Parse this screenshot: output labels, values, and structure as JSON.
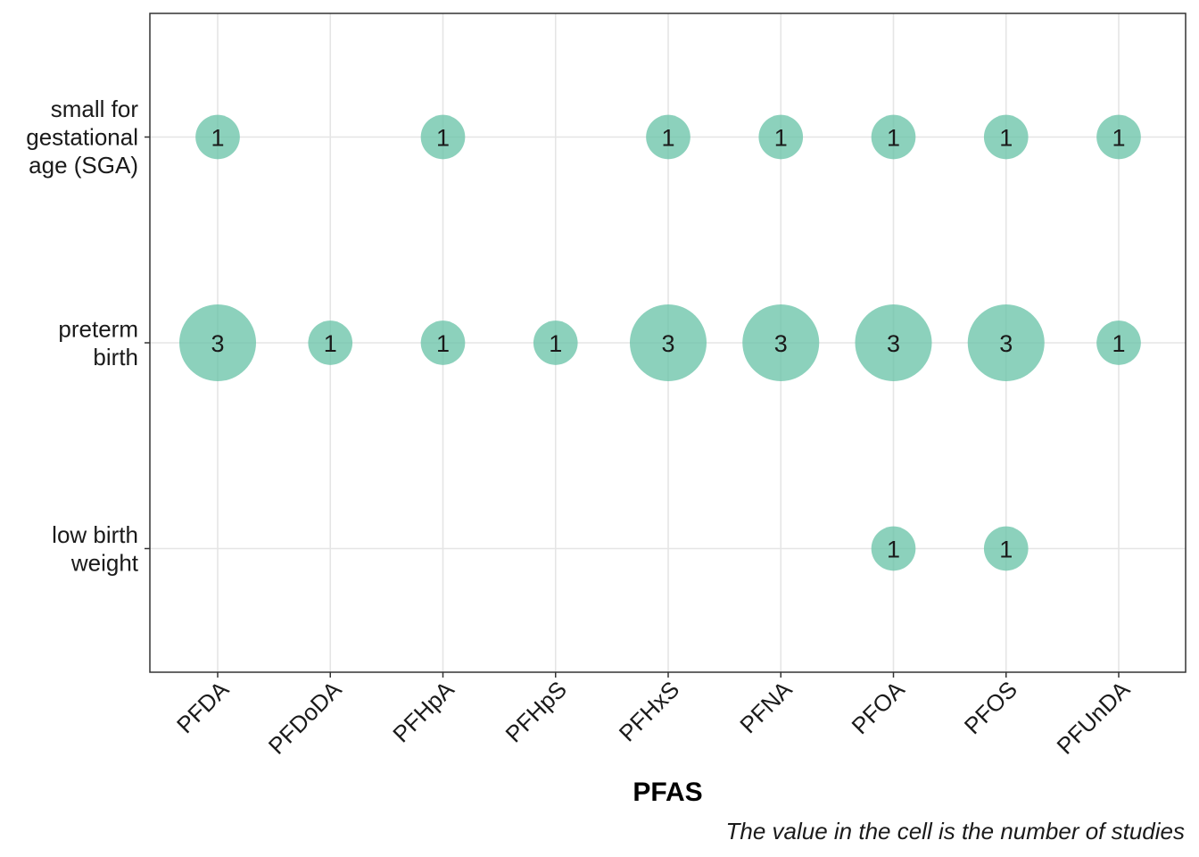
{
  "chart_data": {
    "type": "scatter",
    "subtype": "bubble-matrix",
    "title": "",
    "xlabel": "PFAS",
    "ylabel": "",
    "caption": "The value in the cell is the number of studies",
    "categories_x": [
      "PFDA",
      "PFDoDA",
      "PFHpA",
      "PFHpS",
      "PFHxS",
      "PFNA",
      "PFOA",
      "PFOS",
      "PFUnDA"
    ],
    "categories_y": [
      {
        "key": "sga",
        "lines": [
          "small for",
          "gestational",
          "age (SGA)"
        ]
      },
      {
        "key": "preterm",
        "lines": [
          "preterm",
          "birth"
        ]
      },
      {
        "key": "lbw",
        "lines": [
          "low birth",
          "weight"
        ]
      }
    ],
    "points": [
      {
        "x": "PFDA",
        "y": "sga",
        "value": 1
      },
      {
        "x": "PFHpA",
        "y": "sga",
        "value": 1
      },
      {
        "x": "PFHxS",
        "y": "sga",
        "value": 1
      },
      {
        "x": "PFNA",
        "y": "sga",
        "value": 1
      },
      {
        "x": "PFOA",
        "y": "sga",
        "value": 1
      },
      {
        "x": "PFOS",
        "y": "sga",
        "value": 1
      },
      {
        "x": "PFUnDA",
        "y": "sga",
        "value": 1
      },
      {
        "x": "PFDA",
        "y": "preterm",
        "value": 3
      },
      {
        "x": "PFDoDA",
        "y": "preterm",
        "value": 1
      },
      {
        "x": "PFHpA",
        "y": "preterm",
        "value": 1
      },
      {
        "x": "PFHpS",
        "y": "preterm",
        "value": 1
      },
      {
        "x": "PFHxS",
        "y": "preterm",
        "value": 3
      },
      {
        "x": "PFNA",
        "y": "preterm",
        "value": 3
      },
      {
        "x": "PFOA",
        "y": "preterm",
        "value": 3
      },
      {
        "x": "PFOS",
        "y": "preterm",
        "value": 3
      },
      {
        "x": "PFUnDA",
        "y": "preterm",
        "value": 1
      },
      {
        "x": "PFOA",
        "y": "lbw",
        "value": 1
      },
      {
        "x": "PFOS",
        "y": "lbw",
        "value": 1
      }
    ],
    "grid": true,
    "legend": "none",
    "colors": {
      "bubble": "#66c2a5",
      "grid": "#e5e5e5",
      "axis": "#333333"
    }
  }
}
